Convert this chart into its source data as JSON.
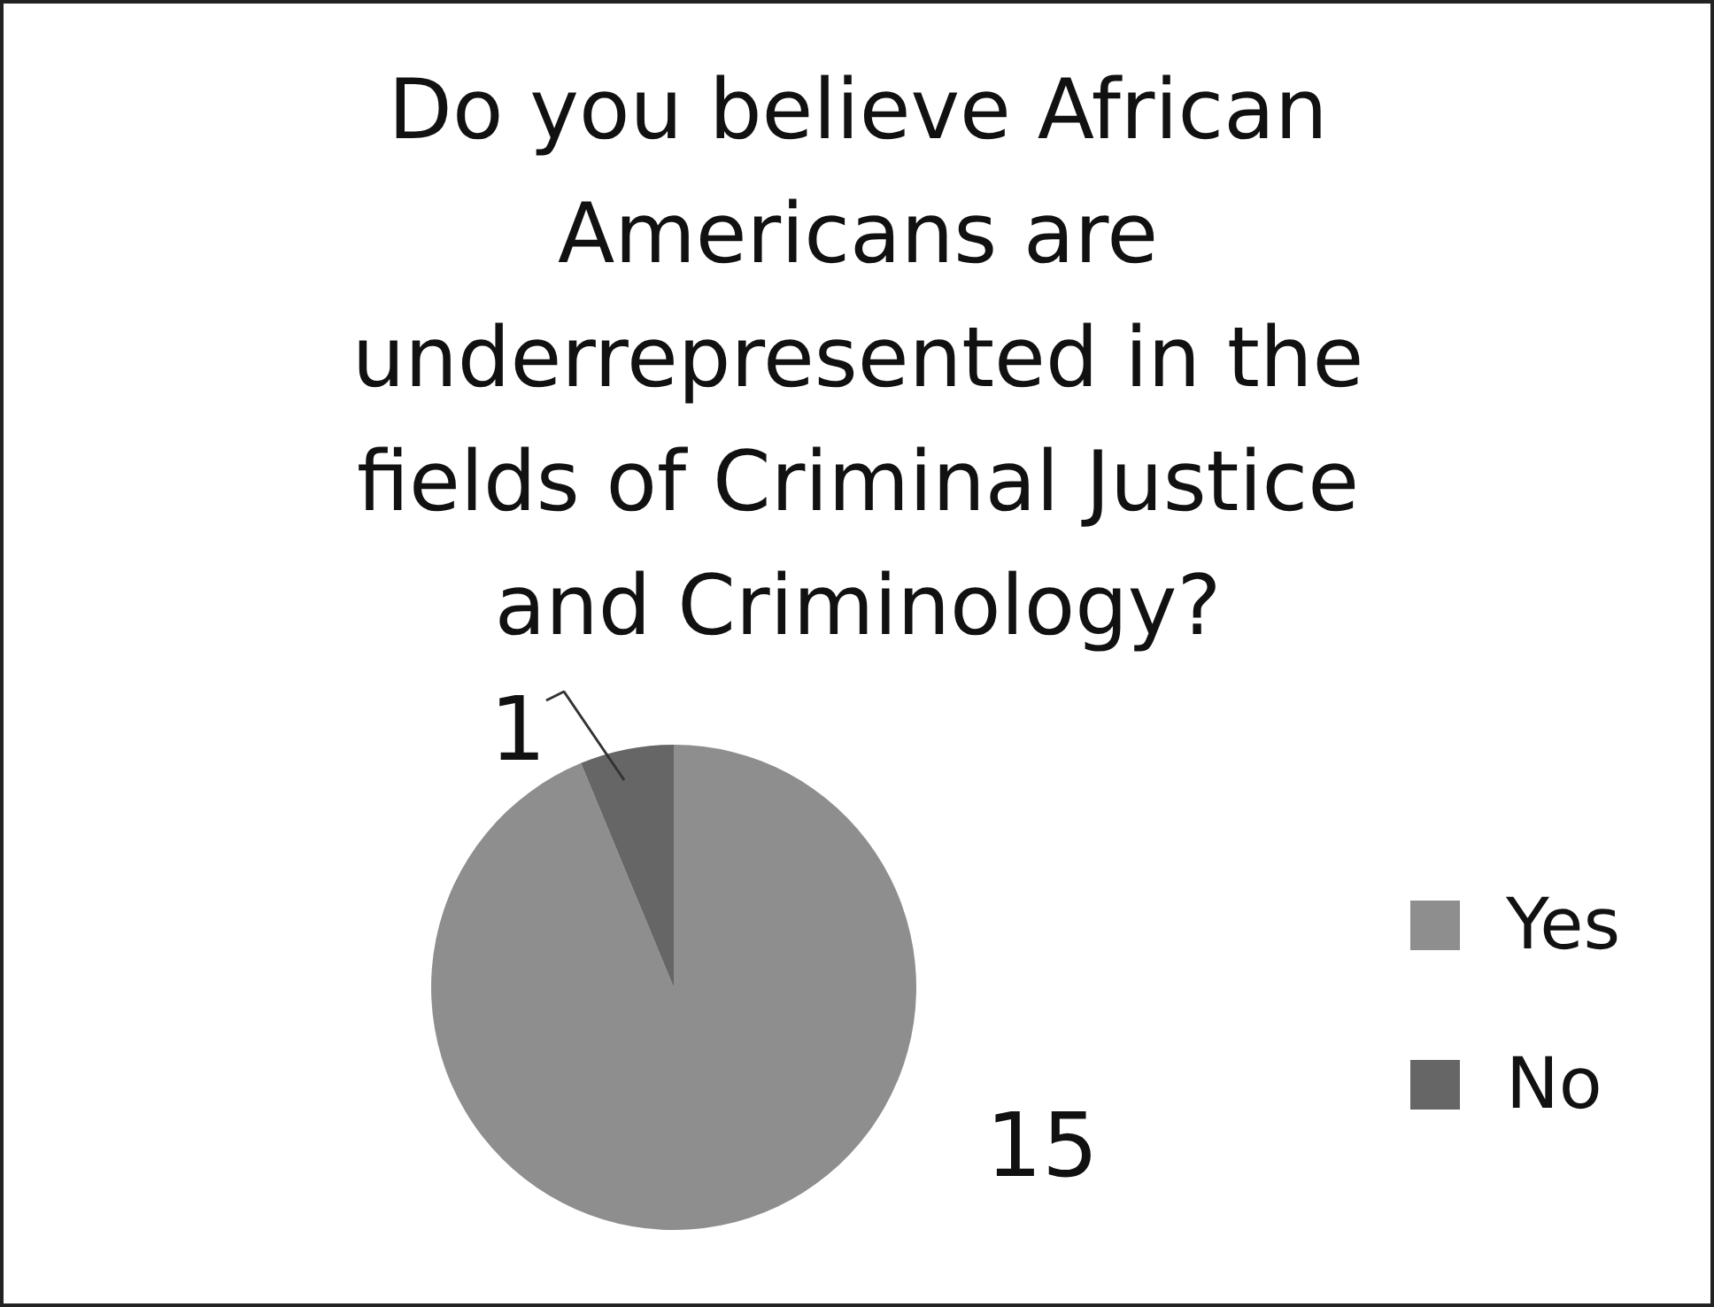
{
  "chart_data": {
    "type": "pie",
    "title": "Do you believe African Americans are underrepresented in the fields of Criminal Justice and Criminology?",
    "categories": [
      "Yes",
      "No"
    ],
    "values": [
      15,
      1
    ],
    "colors": [
      "#8e8e8e",
      "#666666"
    ],
    "data_labels": true,
    "legend": "right"
  }
}
